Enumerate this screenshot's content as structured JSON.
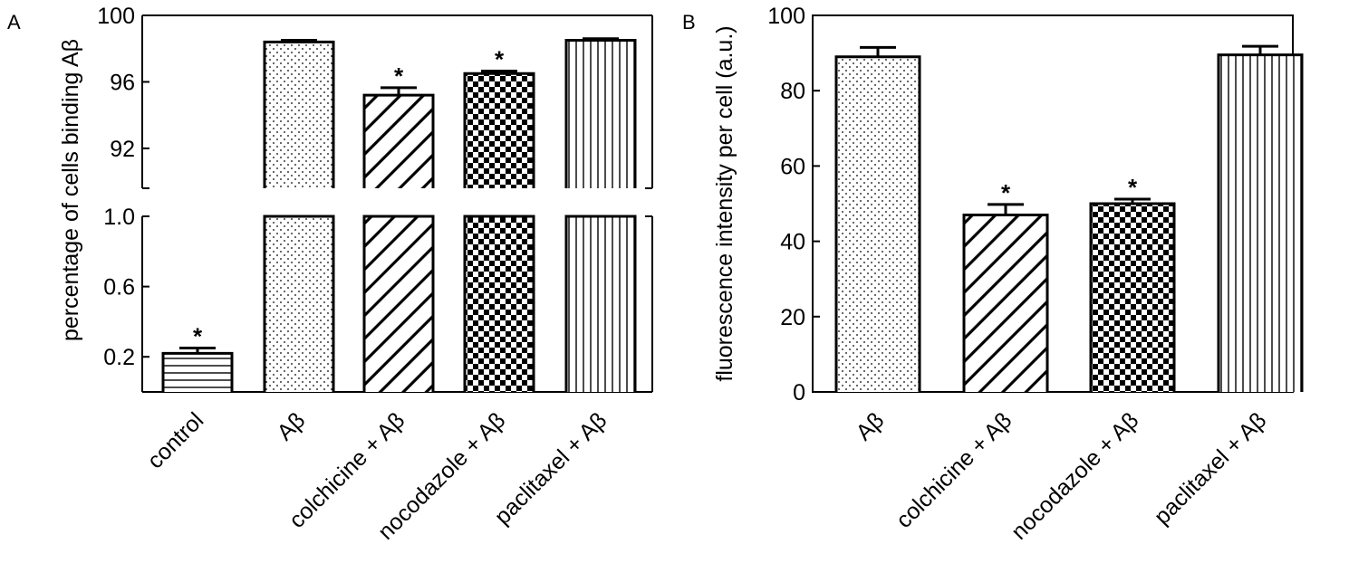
{
  "chart_data": [
    {
      "panel_label": "A",
      "type": "bar",
      "ylabel": "percentage of cells binding Aβ",
      "categories": [
        "control",
        "Aβ",
        "colchicine + Aβ",
        "nocodazole + Aβ",
        "paclitaxel + Aβ"
      ],
      "values": [
        0.22,
        98.4,
        95.2,
        96.5,
        98.5
      ],
      "errors": [
        0.03,
        0.1,
        0.45,
        0.15,
        0.1
      ],
      "significant": [
        true,
        false,
        true,
        true,
        false
      ],
      "significance_marker": "*",
      "patterns": [
        "horizontal",
        "dots",
        "diagonal",
        "checker",
        "vertical"
      ],
      "axis_break": true,
      "lower_segment": {
        "ylim": [
          0,
          1.0
        ],
        "ticks": [
          "0.2",
          "0.6",
          "1.0"
        ],
        "tick_values": [
          0.2,
          0.6,
          1.0
        ]
      },
      "upper_segment": {
        "ylim": [
          89.6,
          100
        ],
        "ticks": [
          "92",
          "96",
          "100"
        ],
        "tick_values": [
          92,
          96,
          100
        ]
      }
    },
    {
      "panel_label": "B",
      "type": "bar",
      "ylabel": "fluorescence intensity per cell (a.u.)",
      "categories": [
        "Aβ",
        "colchicine + Aβ",
        "nocodazole + Aβ",
        "paclitaxel + Aβ"
      ],
      "values": [
        89,
        47,
        50,
        89.5
      ],
      "errors": [
        2.5,
        2.8,
        1.2,
        2.3
      ],
      "significant": [
        false,
        true,
        true,
        false
      ],
      "significance_marker": "*",
      "patterns": [
        "dots",
        "diagonal",
        "checker",
        "vertical"
      ],
      "ylim": [
        0,
        100
      ],
      "ticks": [
        "0",
        "20",
        "40",
        "60",
        "80",
        "100"
      ],
      "tick_values": [
        0,
        20,
        40,
        60,
        80,
        100
      ]
    }
  ]
}
